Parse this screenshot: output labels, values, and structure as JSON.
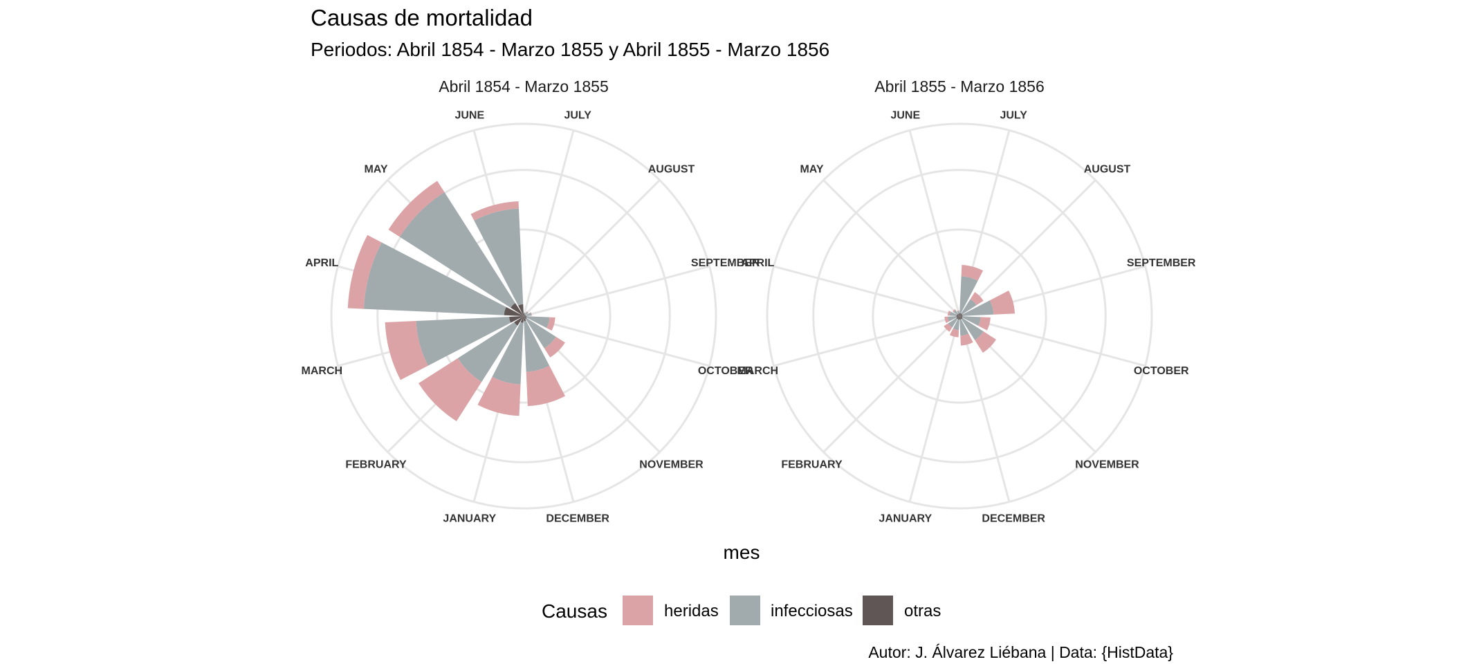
{
  "chart_data": {
    "type": "bar",
    "coord": "polar",
    "title": "Causas de mortalidad",
    "subtitle": "Periodos: Abril 1854 - Marzo 1855 y Abril 1855 - Marzo 1856",
    "xlabel": "mes",
    "caption": "Autor: J. Álvarez Liébana | Data: {HistData}",
    "legend": {
      "title": "Causas",
      "position": "bottom",
      "entries": [
        {
          "name": "heridas",
          "color": "#DBA3A6"
        },
        {
          "name": "infecciosas",
          "color": "#A1AAAD"
        },
        {
          "name": "otras",
          "color": "#605656"
        }
      ]
    },
    "months_display": [
      "JULY",
      "AUGUST",
      "SEPTEMBER",
      "OCTOBER",
      "NOVEMBER",
      "DECEMBER",
      "JANUARY",
      "FEBRUARY",
      "MARCH",
      "APRIL",
      "MAY",
      "JUNE"
    ],
    "panels": [
      {
        "title": "Abril 1854 - Marzo 1855",
        "categories": [
          "JULY",
          "AUGUST",
          "SEPTEMBER",
          "OCTOBER",
          "NOVEMBER",
          "DECEMBER",
          "JANUARY",
          "FEBRUARY",
          "MARCH",
          "APRIL",
          "MAY",
          "JUNE"
        ],
        "series": [
          {
            "name": "heridas",
            "values": [
              0,
              0.1,
              0.1,
              1.1,
              2.1,
              6.6,
              6.1,
              9.0,
              6.0,
              3.1,
              2.6,
              1.4
            ]
          },
          {
            "name": "infecciosas",
            "values": [
              0.2,
              0.6,
              1.1,
              4.4,
              6.7,
              9.8,
              11.9,
              12.9,
              18.0,
              27.1,
              25.4,
              18.5
            ]
          },
          {
            "name": "otras",
            "values": [
              0.5,
              0.4,
              0.4,
              0.6,
              0.7,
              1.0,
              1.3,
              2.2,
              2.8,
              3.8,
              3.0,
              2.3
            ]
          }
        ]
      },
      {
        "title": "Abril 1855 - Marzo 1856",
        "categories": [
          "JULY",
          "AUGUST",
          "SEPTEMBER",
          "OCTOBER",
          "NOVEMBER",
          "DECEMBER",
          "JANUARY",
          "FEBRUARY",
          "MARCH",
          "APRIL",
          "MAY",
          "JUNE"
        ],
        "series": [
          {
            "name": "heridas",
            "values": [
              2.2,
              1.6,
              4.1,
              1.9,
              2.9,
              1.9,
              1.4,
              1.0,
              0.6,
              0.4,
              0.2,
              0.1
            ]
          },
          {
            "name": "infecciosas",
            "values": [
              7.1,
              3.3,
              6.0,
              3.5,
              4.8,
              3.1,
              2.0,
              1.9,
              1.7,
              1.3,
              0.9,
              0.5
            ]
          },
          {
            "name": "otras",
            "values": [
              0.6,
              0.6,
              0.6,
              0.6,
              0.7,
              0.7,
              0.7,
              0.7,
              0.6,
              0.6,
              0.5,
              0.5
            ]
          }
        ]
      }
    ]
  }
}
